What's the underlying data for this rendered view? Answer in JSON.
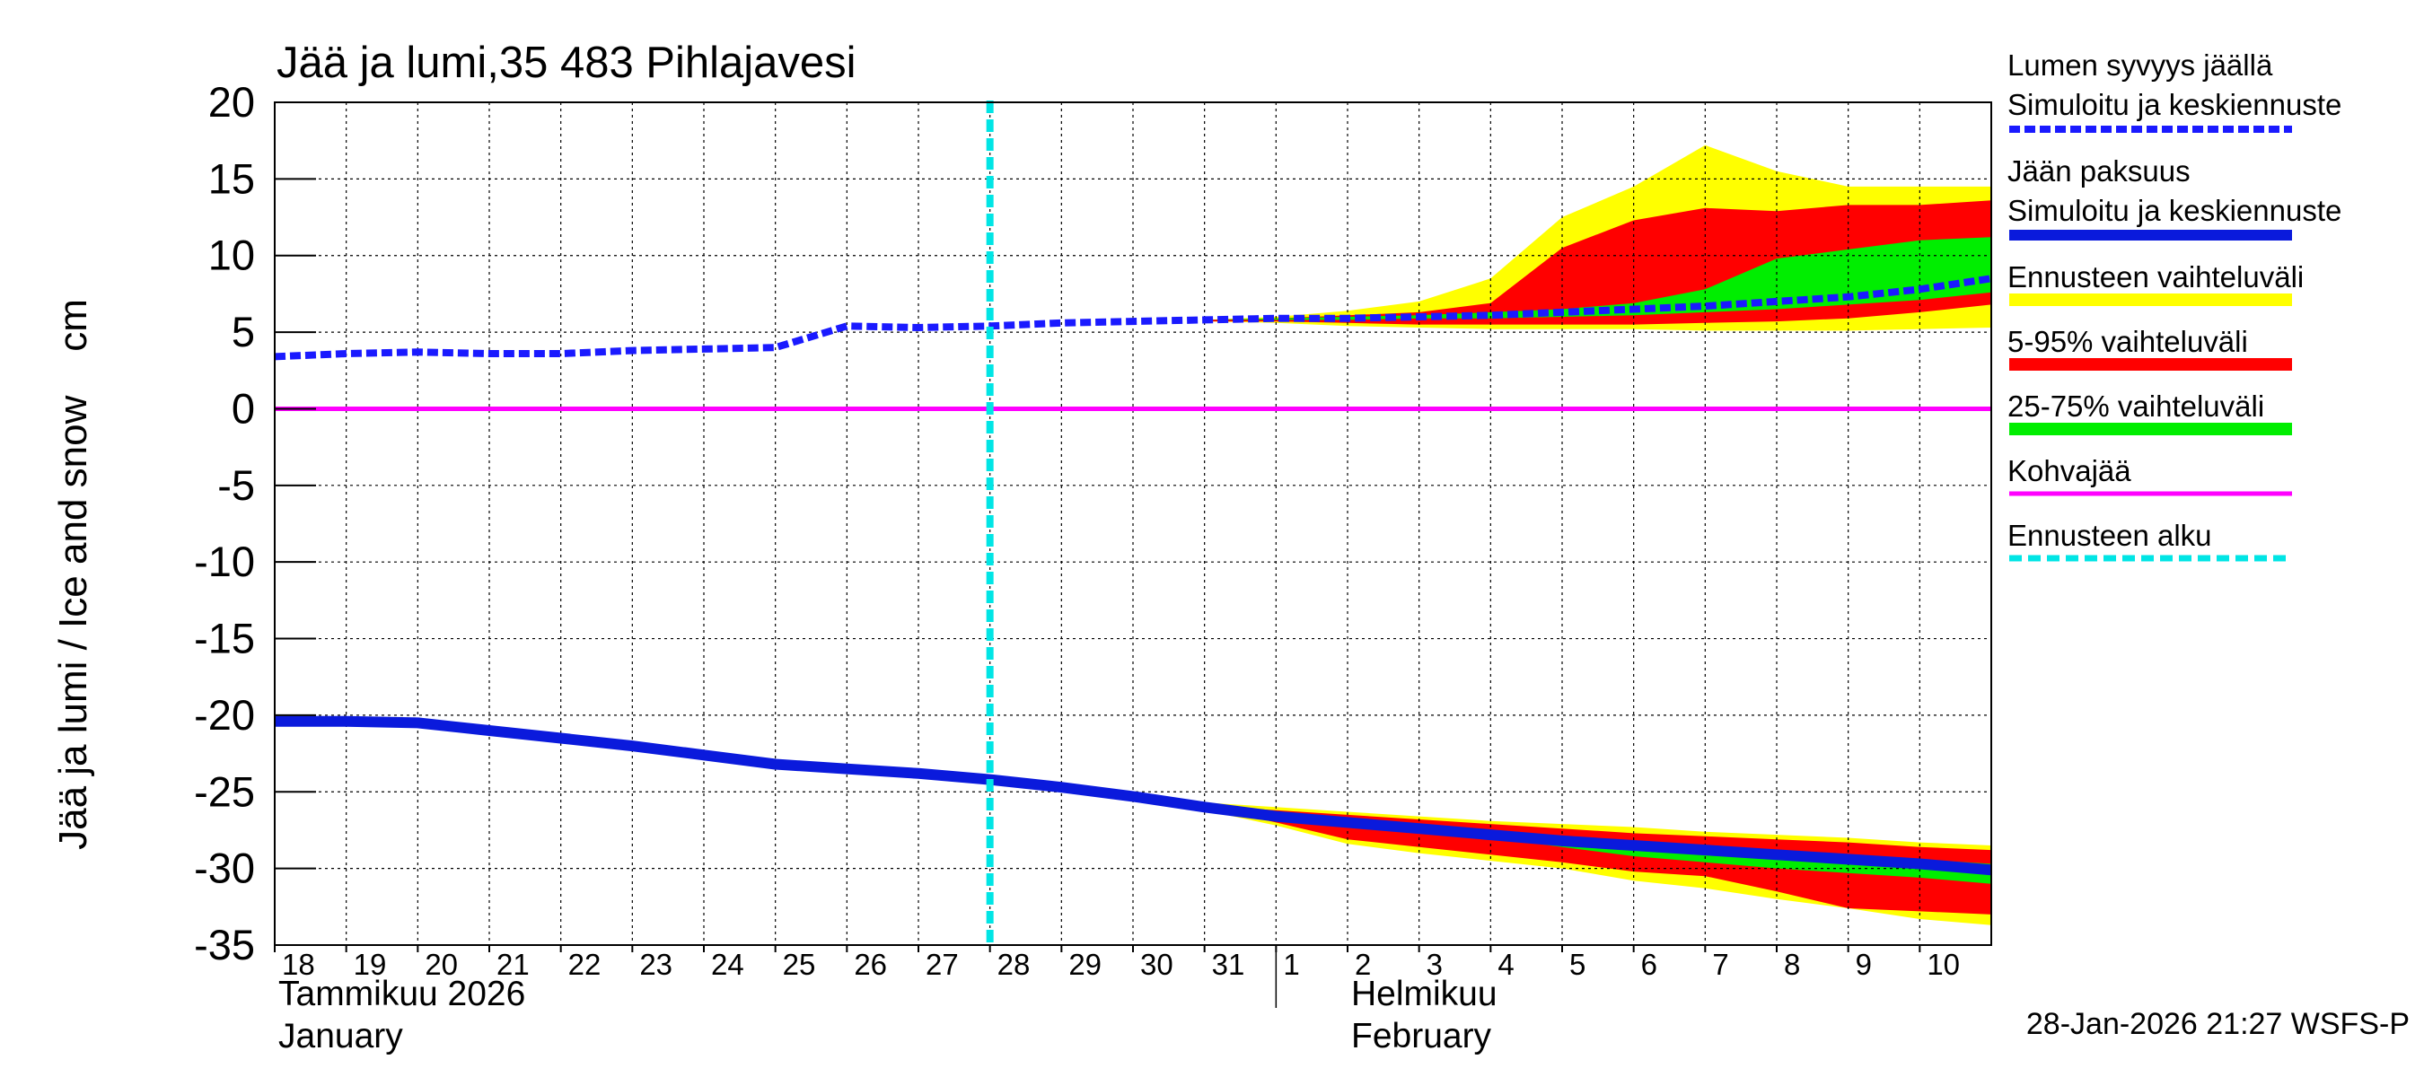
{
  "chart_data": {
    "type": "area",
    "title": "Jää ja lumi,35 483 Pihlajavesi",
    "ylabel": "Jää ja lumi / Ice and snow    cm",
    "ylim": [
      -35,
      20
    ],
    "yticks": [
      20,
      15,
      10,
      5,
      0,
      -5,
      -10,
      -15,
      -20,
      -25,
      -30,
      -35
    ],
    "x_range_days": [
      0,
      24
    ],
    "x_ticks": [
      {
        "day": 0,
        "label": "18"
      },
      {
        "day": 1,
        "label": "19"
      },
      {
        "day": 2,
        "label": "20"
      },
      {
        "day": 3,
        "label": "21"
      },
      {
        "day": 4,
        "label": "22"
      },
      {
        "day": 5,
        "label": "23"
      },
      {
        "day": 6,
        "label": "24"
      },
      {
        "day": 7,
        "label": "25"
      },
      {
        "day": 8,
        "label": "26"
      },
      {
        "day": 9,
        "label": "27"
      },
      {
        "day": 10,
        "label": "28"
      },
      {
        "day": 11,
        "label": "29"
      },
      {
        "day": 12,
        "label": "30"
      },
      {
        "day": 13,
        "label": "31"
      },
      {
        "day": 14,
        "label": "1"
      },
      {
        "day": 15,
        "label": "2"
      },
      {
        "day": 16,
        "label": "3"
      },
      {
        "day": 17,
        "label": "4"
      },
      {
        "day": 18,
        "label": "5"
      },
      {
        "day": 19,
        "label": "6"
      },
      {
        "day": 20,
        "label": "7"
      },
      {
        "day": 21,
        "label": "8"
      },
      {
        "day": 22,
        "label": "9"
      },
      {
        "day": 23,
        "label": "10"
      }
    ],
    "month_labels": [
      {
        "day": 0,
        "line1": "Tammikuu  2026",
        "line2": "January"
      },
      {
        "day": 15,
        "line1": "Helmikuu",
        "line2": "February"
      }
    ],
    "month_separator_day": 14,
    "forecast_start_day": 10,
    "kohvajaa_value": 0,
    "series": [
      {
        "name": "Lumen syvyys jäällä – Simuloitu ja keskiennuste",
        "style": "dashed",
        "color": "#1a1aff",
        "x": [
          0,
          1,
          2,
          3,
          4,
          5,
          6,
          7,
          8,
          9,
          10,
          11,
          12,
          13,
          14,
          15,
          16,
          17,
          18,
          19,
          20,
          21,
          22,
          23,
          24
        ],
        "y": [
          3.4,
          3.6,
          3.7,
          3.6,
          3.6,
          3.8,
          3.9,
          4.0,
          5.4,
          5.3,
          5.4,
          5.6,
          5.7,
          5.8,
          5.9,
          5.9,
          6.0,
          6.1,
          6.3,
          6.5,
          6.7,
          7.0,
          7.3,
          7.8,
          8.5
        ]
      },
      {
        "name": "Jään paksuus – Simuloitu ja keskiennuste",
        "style": "solid",
        "color": "#0a1adc",
        "x": [
          0,
          1,
          2,
          3,
          4,
          5,
          6,
          7,
          8,
          9,
          10,
          11,
          12,
          13,
          14,
          15,
          16,
          17,
          18,
          19,
          20,
          21,
          22,
          23,
          24
        ],
        "y": [
          -20.4,
          -20.4,
          -20.5,
          -21.0,
          -21.5,
          -22.0,
          -22.6,
          -23.2,
          -23.5,
          -23.8,
          -24.2,
          -24.7,
          -25.3,
          -26.0,
          -26.6,
          -27.0,
          -27.4,
          -27.8,
          -28.2,
          -28.5,
          -28.8,
          -29.1,
          -29.4,
          -29.7,
          -30.1
        ]
      }
    ],
    "bands": [
      {
        "name": "Ennusteen vaihteluväli (snow)",
        "color": "#ffff00",
        "x": [
          13,
          14,
          15,
          16,
          17,
          18,
          19,
          20,
          21,
          22,
          23,
          24
        ],
        "lower": [
          5.7,
          5.6,
          5.4,
          5.3,
          5.2,
          5.2,
          5.2,
          5.1,
          5.1,
          5.1,
          5.2,
          5.3
        ],
        "upper": [
          5.8,
          6.0,
          6.4,
          7.0,
          8.5,
          12.5,
          14.5,
          17.2,
          15.5,
          14.5,
          14.5,
          14.5
        ]
      },
      {
        "name": "5-95% vaihteluväli (snow)",
        "color": "#ff0000",
        "x": [
          13,
          14,
          15,
          16,
          17,
          18,
          19,
          20,
          21,
          22,
          23,
          24
        ],
        "lower": [
          5.7,
          5.7,
          5.6,
          5.5,
          5.5,
          5.5,
          5.5,
          5.6,
          5.7,
          5.9,
          6.3,
          6.8
        ],
        "upper": [
          5.8,
          5.9,
          6.1,
          6.3,
          6.9,
          10.5,
          12.3,
          13.1,
          12.9,
          13.3,
          13.3,
          13.6
        ]
      },
      {
        "name": "25-75% vaihteluväli (snow)",
        "color": "#00ee00",
        "x": [
          13,
          14,
          15,
          16,
          17,
          18,
          19,
          20,
          21,
          22,
          23,
          24
        ],
        "lower": [
          5.8,
          5.8,
          5.8,
          5.9,
          5.9,
          6.0,
          6.1,
          6.3,
          6.5,
          6.8,
          7.1,
          7.6
        ],
        "upper": [
          5.8,
          5.9,
          6.0,
          6.1,
          6.3,
          6.5,
          6.9,
          7.8,
          9.8,
          10.4,
          11.0,
          11.2
        ]
      },
      {
        "name": "Ennusteen vaihteluväli (ice)",
        "color": "#ffff00",
        "x": [
          13,
          14,
          15,
          16,
          17,
          18,
          19,
          20,
          21,
          22,
          23,
          24
        ],
        "lower": [
          -26.2,
          -27.2,
          -28.4,
          -29.0,
          -29.5,
          -30.0,
          -30.8,
          -31.3,
          -32.0,
          -32.6,
          -33.3,
          -33.7
        ],
        "upper": [
          -25.7,
          -26.0,
          -26.3,
          -26.6,
          -26.9,
          -27.1,
          -27.3,
          -27.6,
          -27.8,
          -28.0,
          -28.3,
          -28.5
        ]
      },
      {
        "name": "5-95% vaihteluväli (ice)",
        "color": "#ff0000",
        "x": [
          13,
          14,
          15,
          16,
          17,
          18,
          19,
          20,
          21,
          22,
          23,
          24
        ],
        "lower": [
          -26.0,
          -27.0,
          -28.1,
          -28.6,
          -29.1,
          -29.6,
          -30.2,
          -30.5,
          -31.5,
          -32.6,
          -32.8,
          -33.0
        ],
        "upper": [
          -25.9,
          -26.2,
          -26.5,
          -26.8,
          -27.1,
          -27.4,
          -27.7,
          -27.9,
          -28.1,
          -28.3,
          -28.6,
          -28.8
        ]
      },
      {
        "name": "25-75% vaihteluväli (ice)",
        "color": "#00ee00",
        "x": [
          13,
          14,
          15,
          16,
          17,
          18,
          19,
          20,
          21,
          22,
          23,
          24
        ],
        "lower": [
          -26.0,
          -26.6,
          -27.1,
          -27.5,
          -28.0,
          -28.6,
          -29.2,
          -29.6,
          -30.0,
          -30.3,
          -30.6,
          -31.0
        ],
        "upper": [
          -25.9,
          -26.4,
          -26.8,
          -27.2,
          -27.5,
          -27.9,
          -28.2,
          -28.5,
          -28.8,
          -29.1,
          -29.4,
          -29.7
        ]
      }
    ],
    "legend": [
      {
        "line1": "Lumen syvyys jäällä",
        "line2": "Simuloitu ja keskiennuste",
        "color": "#1a1aff",
        "style": "dashed"
      },
      {
        "line1": "Jään paksuus",
        "line2": "Simuloitu ja keskiennuste",
        "color": "#0a1adc",
        "style": "solid"
      },
      {
        "line1": "Ennusteen vaihteluväli",
        "color": "#ffff00",
        "style": "band"
      },
      {
        "line1": "5-95% vaihteluväli",
        "color": "#ff0000",
        "style": "band"
      },
      {
        "line1": "25-75% vaihteluväli",
        "color": "#00ee00",
        "style": "band"
      },
      {
        "line1": "Kohvajää",
        "color": "#ff00ff",
        "style": "thin"
      },
      {
        "line1": "Ennusteen alku",
        "color": "#00e5e5",
        "style": "dashed-cyan"
      }
    ],
    "legend_placement": "right",
    "timestamp": "28-Jan-2026 21:27 WSFS-P"
  }
}
